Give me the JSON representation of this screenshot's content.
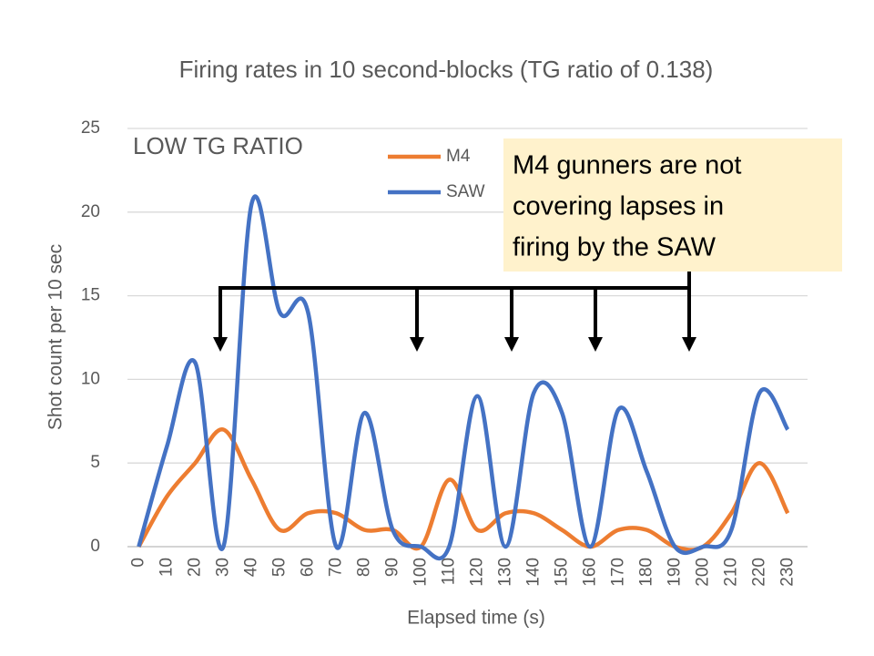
{
  "chart_data": {
    "type": "line",
    "title": "Firing rates in 10 second-blocks (TG ratio of 0.138)",
    "x_label": "Elapsed time (s)",
    "y_label": "Shot count per 10 sec",
    "annotations": [
      "LOW TG RATIO",
      "M4 gunners are not",
      "covering lapses in",
      "firing by the SAW"
    ],
    "x": [
      0,
      10,
      20,
      30,
      40,
      50,
      60,
      70,
      80,
      90,
      100,
      110,
      120,
      130,
      140,
      150,
      160,
      170,
      180,
      190,
      200,
      210,
      220,
      230
    ],
    "series": [
      {
        "name": "M4",
        "color": "#ed7d31",
        "values": [
          0,
          3,
          5,
          7,
          4,
          1,
          2,
          2,
          1,
          1,
          0,
          4,
          1,
          2,
          2,
          1,
          0,
          1,
          1,
          0,
          0,
          2,
          5,
          2
        ]
      },
      {
        "name": "SAW",
        "color": "#4472c4",
        "values": [
          0,
          6,
          11,
          0,
          20.5,
          14,
          14,
          0,
          8,
          1,
          0,
          0,
          9,
          0,
          9.2,
          8,
          0,
          8.2,
          4.5,
          0,
          0,
          1,
          9.2,
          7
        ]
      }
    ],
    "xlim": [
      -4,
      237
    ],
    "xticks": [
      0,
      10,
      20,
      30,
      40,
      50,
      60,
      70,
      80,
      90,
      100,
      110,
      120,
      130,
      140,
      150,
      160,
      170,
      180,
      190,
      200,
      210,
      220,
      230
    ],
    "ylim": [
      0,
      25
    ],
    "yticks": [
      0,
      5,
      10,
      15,
      20,
      25
    ],
    "grid": true
  }
}
